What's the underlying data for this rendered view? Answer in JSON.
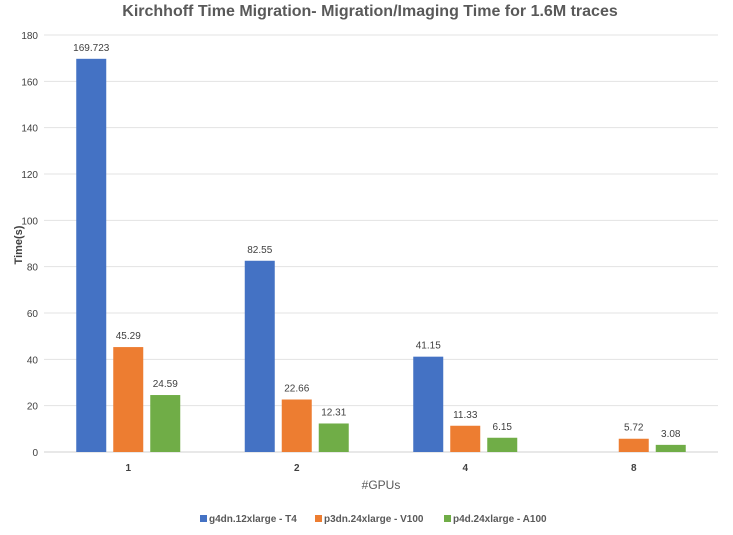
{
  "chart_data": {
    "type": "bar",
    "title": "Kirchhoff Time Migration- Migration/Imaging Time for 1.6M traces",
    "xlabel": "#GPUs",
    "ylabel": "Time(s)",
    "categories": [
      "1",
      "2",
      "4",
      "8"
    ],
    "ylim": [
      0,
      180
    ],
    "yticks": [
      0,
      20,
      40,
      60,
      80,
      100,
      120,
      140,
      160,
      180
    ],
    "grid": true,
    "legend_position": "bottom",
    "series": [
      {
        "name": "g4dn.12xlarge - T4",
        "color": "#4472C4",
        "values": [
          169.723,
          82.55,
          41.15,
          null
        ],
        "labels": [
          "169.723",
          "82.55",
          "41.15",
          null
        ]
      },
      {
        "name": "p3dn.24xlarge - V100",
        "color": "#ED7D31",
        "values": [
          45.29,
          22.66,
          11.33,
          5.72
        ],
        "labels": [
          "45.29",
          "22.66",
          "11.33",
          "5.72"
        ]
      },
      {
        "name": "p4d.24xlarge - A100",
        "color": "#70AD47",
        "values": [
          24.59,
          12.31,
          6.15,
          3.08
        ],
        "labels": [
          "24.59",
          "12.31",
          "6.15",
          "3.08"
        ]
      }
    ]
  }
}
